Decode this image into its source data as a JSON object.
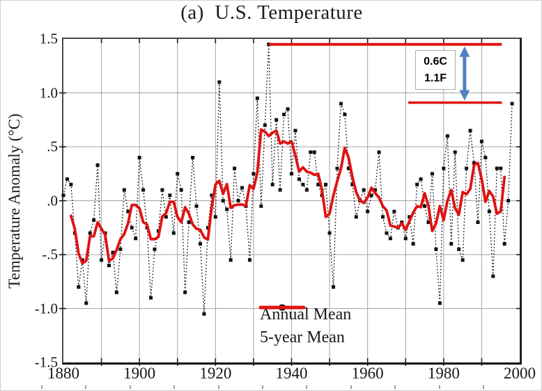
{
  "page": {
    "background": "#ffffff",
    "border_color": "#cfcfcf"
  },
  "chart_data": {
    "type": "line",
    "title": "(a)  U.S. Temperature",
    "ylabel": "Temperature Anomaly (°C)",
    "xlim": [
      1880,
      2000
    ],
    "ylim": [
      -1.5,
      1.5
    ],
    "x_tick_years": [
      1880,
      1900,
      1920,
      1940,
      1960,
      1980,
      2000
    ],
    "x_tick_labels": [
      "1880",
      "1900",
      "1920",
      "1940",
      "1960",
      "1980",
      "2000"
    ],
    "y_tick_values": [
      1.5,
      1.0,
      0.5,
      0.0,
      -0.5,
      -1.0,
      -1.5
    ],
    "y_tick_labels": [
      "1.5",
      "1.0",
      ".5",
      ".0",
      "-.5",
      "-1.0",
      "-1.5"
    ],
    "grid": "on",
    "grid_years": [
      1890,
      1900,
      1910,
      1920,
      1930,
      1940,
      1950,
      1960,
      1970,
      1980,
      1990
    ],
    "grid_values": [
      1.0,
      0.5,
      0.0,
      -0.5,
      -1.0
    ],
    "grid_color": "#a3a3a3",
    "legend_position": "bottom-center-inside",
    "series": [
      {
        "name": "Annual Mean",
        "color": "#111111",
        "style": "dotted line with square markers",
        "start_year": 1880,
        "end_year": 1998,
        "values": [
          0.05,
          0.2,
          0.15,
          -0.3,
          -0.8,
          -0.55,
          -0.95,
          -0.3,
          -0.18,
          0.33,
          -0.55,
          -0.3,
          -0.6,
          -0.48,
          -0.85,
          -0.45,
          0.1,
          -0.1,
          -0.25,
          -0.35,
          0.4,
          0.1,
          -0.25,
          -0.9,
          -0.45,
          -0.28,
          0.1,
          -0.15,
          0.05,
          -0.3,
          0.25,
          0.1,
          -0.85,
          -0.2,
          0.4,
          -0.05,
          -0.4,
          -1.05,
          -0.25,
          0.05,
          -0.15,
          1.1,
          0.0,
          -0.08,
          -0.55,
          0.3,
          0.0,
          0.12,
          -0.05,
          -0.55,
          0.25,
          0.95,
          -0.05,
          0.7,
          1.45,
          0.15,
          0.75,
          0.1,
          0.8,
          0.85,
          0.25,
          0.65,
          0.2,
          0.15,
          0.1,
          0.45,
          0.45,
          0.15,
          0.05,
          0.15,
          -0.3,
          -0.8,
          0.3,
          0.9,
          0.8,
          0.3,
          0.15,
          -0.15,
          0.0,
          0.1,
          -0.1,
          0.05,
          0.1,
          0.45,
          -0.15,
          -0.3,
          -0.35,
          -0.1,
          -0.25,
          -0.2,
          -0.35,
          -0.15,
          -0.4,
          0.15,
          0.2,
          -0.05,
          -0.2,
          0.25,
          -0.45,
          -0.95,
          0.3,
          0.6,
          -0.4,
          0.45,
          -0.45,
          -0.55,
          0.3,
          0.65,
          0.35,
          -0.2,
          0.55,
          0.4,
          -0.1,
          -0.7,
          0.3,
          0.3,
          -0.4,
          0.0,
          0.9
        ]
      },
      {
        "name": "5-year Mean",
        "color": "#e01212",
        "style": "solid",
        "derivation": "centered 5-year running mean of Annual Mean"
      }
    ],
    "annotation": {
      "labels": [
        "0.6C",
        "1.1F"
      ],
      "arrow_color": "#4f81bd",
      "line_color": "#e01212",
      "arrow_year": 1985.5,
      "top_line": {
        "value": 1.45,
        "year_start": 1934,
        "year_end": 1995.3
      },
      "bottom_line": {
        "value": 0.91,
        "year_start": 1970.7,
        "year_end": 1995.3
      }
    }
  }
}
